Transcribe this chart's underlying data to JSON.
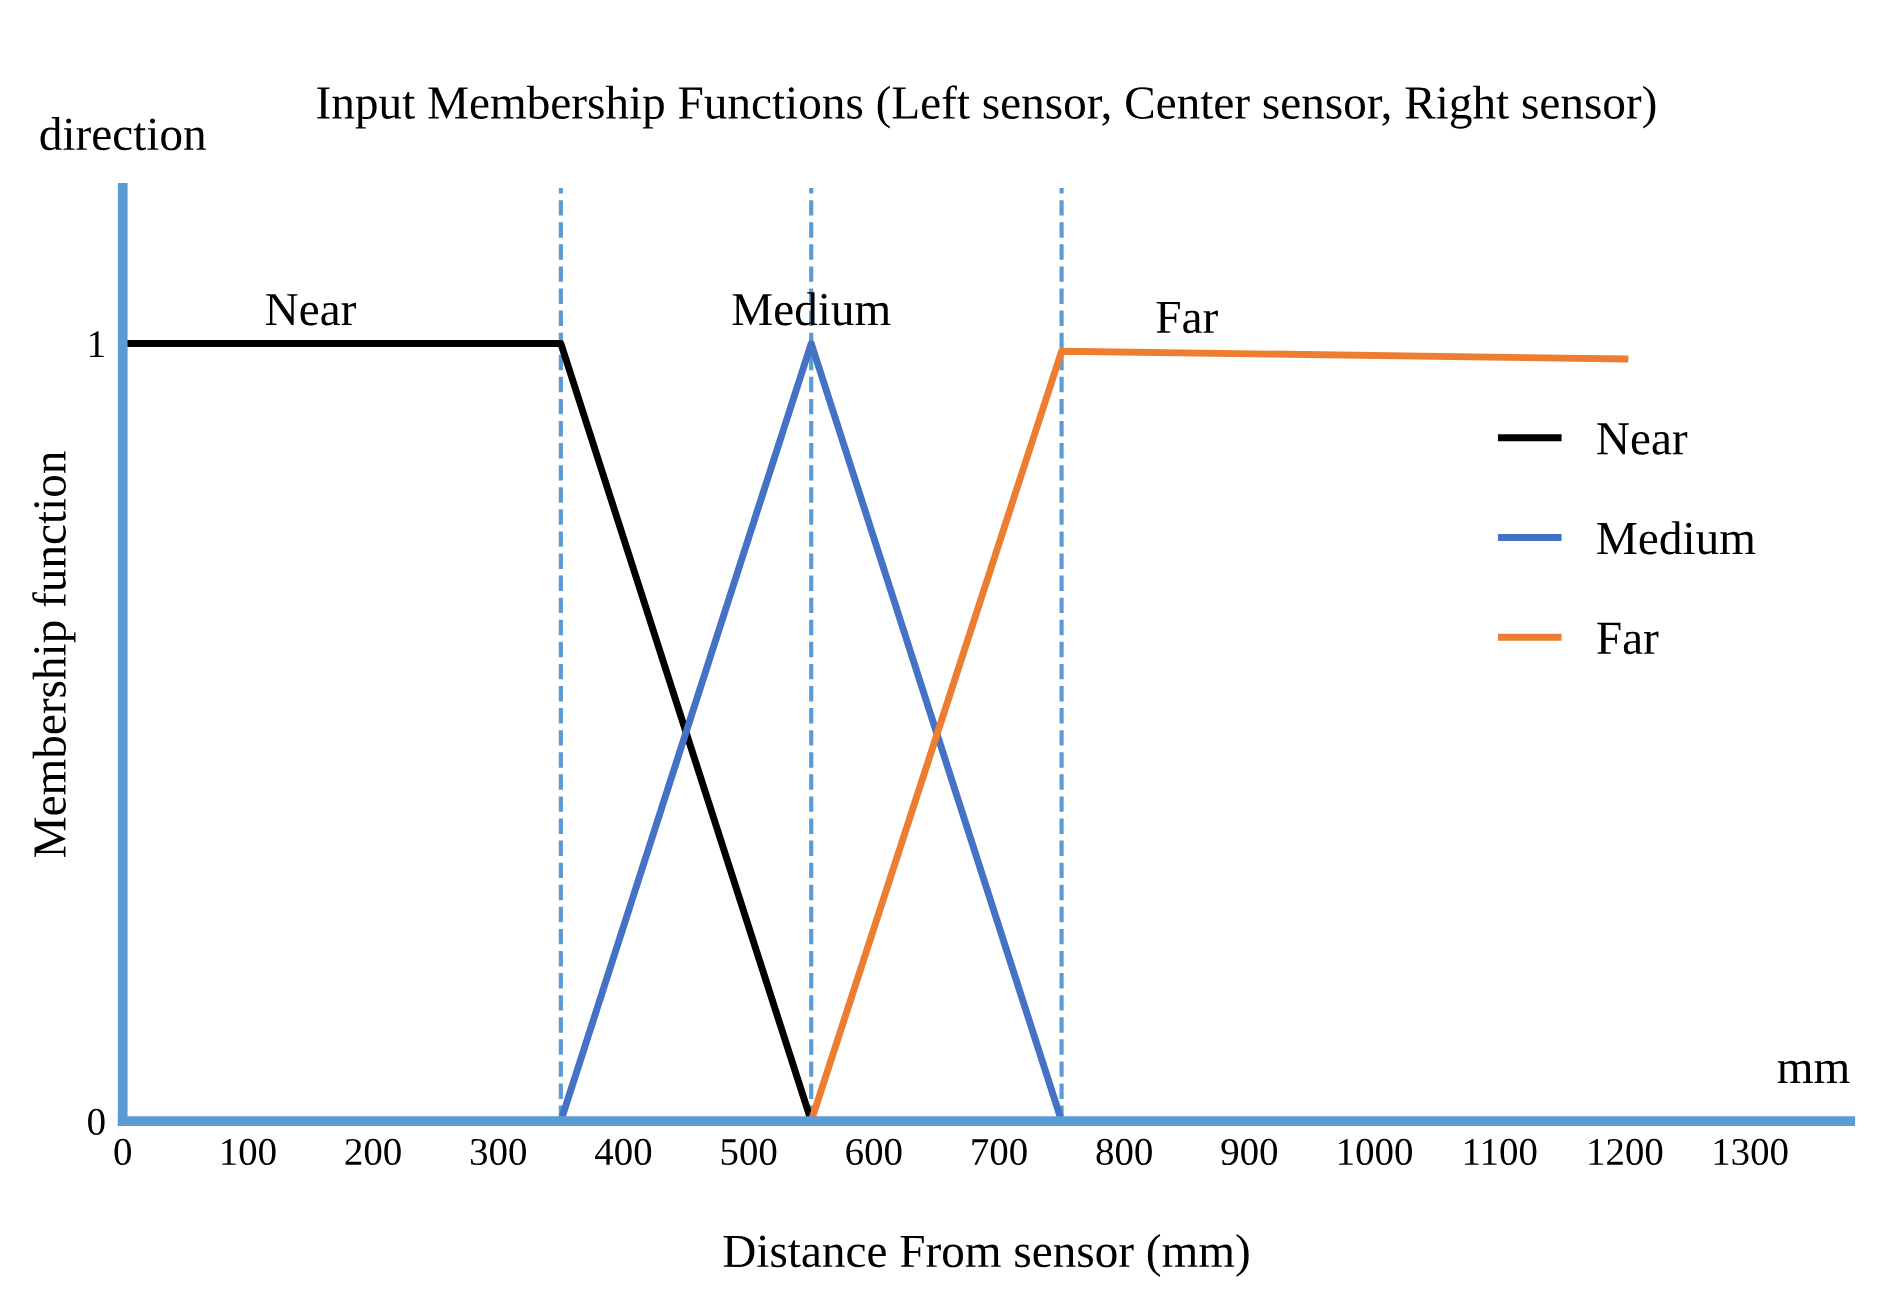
{
  "chart_data": {
    "type": "line",
    "title": "Input Membership Functions (Left sensor, Center sensor, Right sensor)",
    "xlabel": "Distance From sensor (mm)",
    "ylabel": "Membership function",
    "xlim": [
      0,
      1380
    ],
    "ylim": [
      0,
      1.2
    ],
    "xticks": [
      0,
      100,
      200,
      300,
      400,
      500,
      600,
      700,
      800,
      900,
      1000,
      1100,
      1200,
      1300
    ],
    "yticks": [
      0,
      1
    ],
    "series": [
      {
        "name": "Near",
        "color": "#000000",
        "x": [
          0,
          350,
          550
        ],
        "values": [
          1,
          1,
          0
        ]
      },
      {
        "name": "Medium",
        "color": "#4472c4",
        "x": [
          350,
          550,
          750
        ],
        "values": [
          0,
          1,
          0
        ]
      },
      {
        "name": "Far",
        "color": "#ed7d31",
        "x": [
          550,
          750,
          1200
        ],
        "values": [
          0,
          0.99,
          0.98
        ]
      }
    ],
    "ref_lines": [
      {
        "axis": "x",
        "value": 350,
        "color": "#5b9bd5",
        "line_style": "dashed"
      },
      {
        "axis": "x",
        "value": 550,
        "color": "#5b9bd5",
        "line_style": "dashed"
      },
      {
        "axis": "x",
        "value": 750,
        "color": "#5b9bd5",
        "line_style": "dashed"
      }
    ],
    "annotations": [
      "direction",
      "mm",
      {
        "text": "Near",
        "x": 150,
        "y": 1
      },
      {
        "text": "Medium",
        "x": 550,
        "y": 1
      },
      {
        "text": "Far",
        "x": 850,
        "y": 0.99
      }
    ],
    "legend": "right",
    "grid": false,
    "marker": "none",
    "line_style": "solid"
  }
}
